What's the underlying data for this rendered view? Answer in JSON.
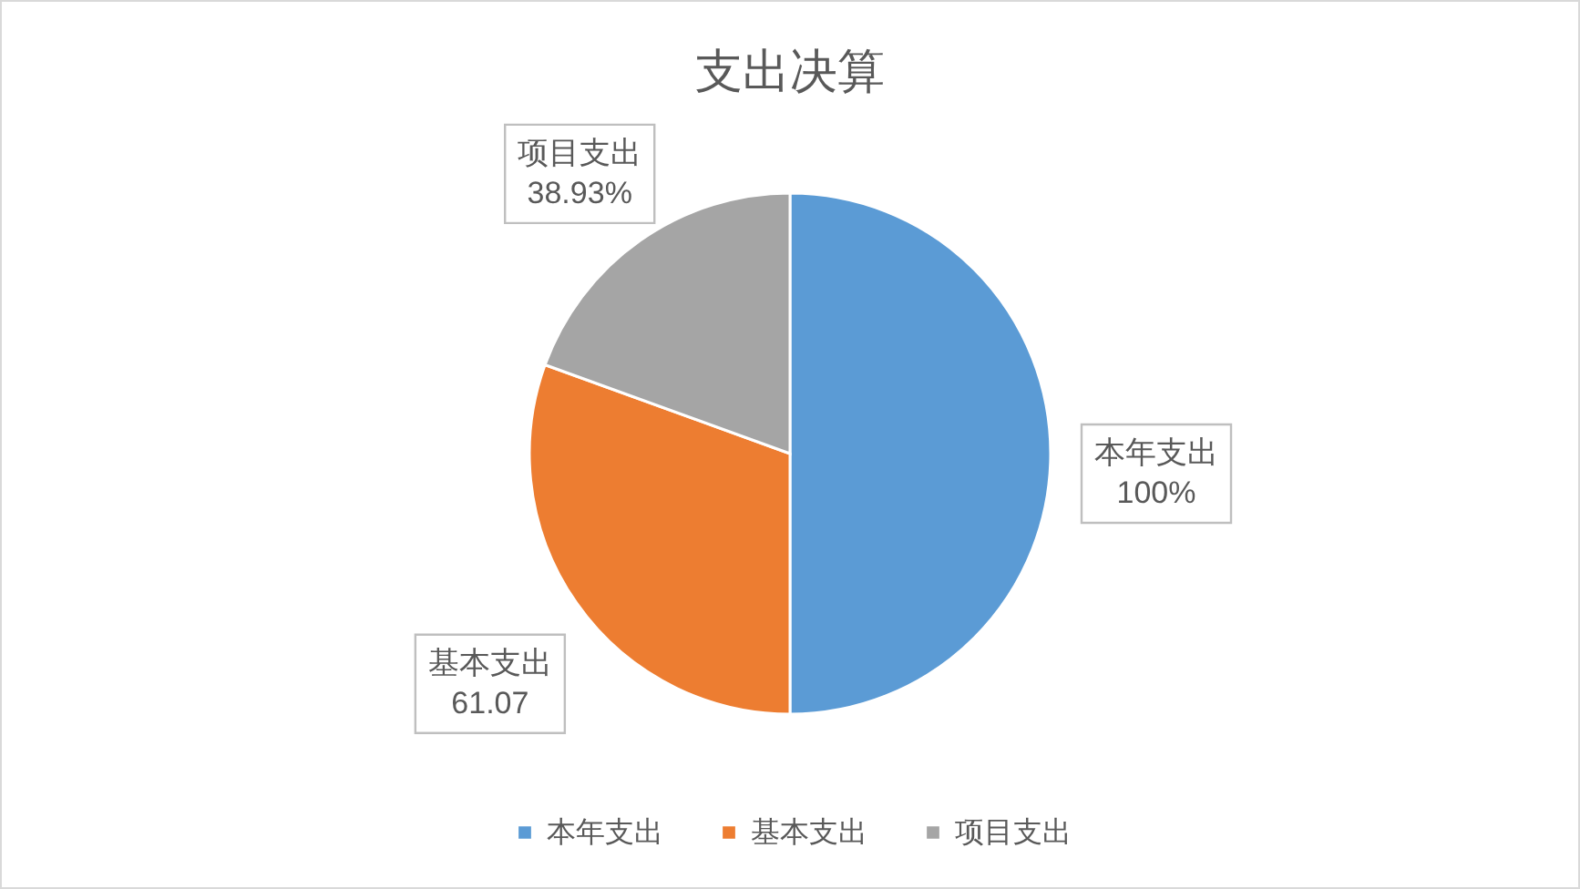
{
  "chart_data": {
    "type": "pie",
    "title": "支出决算",
    "categories": [
      "本年支出",
      "基本支出",
      "项目支出"
    ],
    "values": [
      100,
      61.07,
      38.93
    ],
    "colors": [
      "#5b9bd5",
      "#ed7d31",
      "#a5a5a5"
    ],
    "value_labels": [
      "100%",
      "61.07",
      "38.93%"
    ],
    "legend": "bottom"
  }
}
